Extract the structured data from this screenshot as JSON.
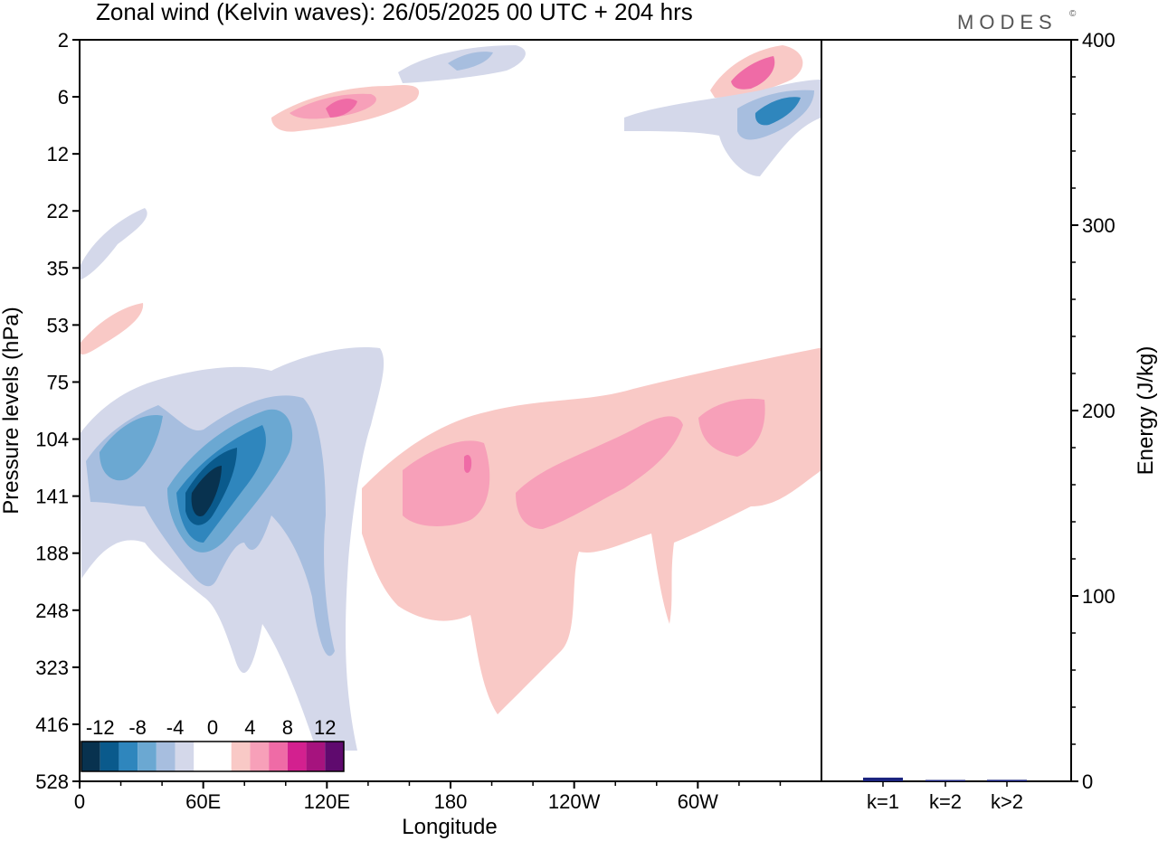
{
  "title": "Zonal wind (Kelvin waves):  26/05/2025  00 UTC  + 204 hrs",
  "logo": "MODES",
  "logo_mark": "©",
  "contour_panel": {
    "xlabel": "Longitude",
    "ylabel": "Pressure levels (hPa)",
    "x_ticks": [
      "0",
      "60E",
      "120E",
      "180",
      "120W",
      "60W"
    ],
    "y_ticks": [
      "2",
      "6",
      "12",
      "22",
      "35",
      "53",
      "75",
      "104",
      "141",
      "188",
      "248",
      "323",
      "416",
      "528"
    ]
  },
  "colorbar": {
    "labels": [
      "-12",
      "-8",
      "-4",
      "0",
      "4",
      "8",
      "12"
    ],
    "colors": [
      "#08324f",
      "#0a5a8c",
      "#2f86bd",
      "#6ba8d2",
      "#a7bedf",
      "#d4d8ea",
      "#ffffff",
      "#ffffff",
      "#f9c9c6",
      "#f7a0b9",
      "#ef6ba6",
      "#d3208f",
      "#a6137e",
      "#5f0a6e"
    ]
  },
  "chart_data": [
    {
      "type": "heatmap",
      "title": "Zonal wind (Kelvin waves):  26/05/2025  00 UTC  + 204 hrs",
      "xlabel": "Longitude",
      "ylabel": "Pressure levels (hPa)",
      "x_categories": [
        "0",
        "60E",
        "120E",
        "180",
        "120W",
        "60W"
      ],
      "y_categories": [
        "2",
        "6",
        "12",
        "22",
        "35",
        "53",
        "75",
        "104",
        "141",
        "188",
        "248",
        "323",
        "416",
        "528"
      ],
      "colorbar_levels": [
        -12,
        -10,
        -8,
        -6,
        -4,
        -2,
        0,
        2,
        4,
        6,
        8,
        10,
        12
      ],
      "features": [
        {
          "sign": "negative",
          "lon_range": [
            40,
            75
          ],
          "p_range_hPa": [
            104,
            248
          ],
          "min_value": -12
        },
        {
          "sign": "negative",
          "lon_range": [
            5,
            30
          ],
          "p_range_hPa": [
            104,
            141
          ],
          "min_value": -6
        },
        {
          "sign": "positive",
          "lon_range": [
            150,
            340
          ],
          "p_range_hPa": [
            75,
            416
          ],
          "max_value": 8
        },
        {
          "sign": "positive",
          "lon_range": [
            100,
            125
          ],
          "p_range_hPa": [
            6,
            8
          ],
          "max_value": 10
        },
        {
          "sign": "positive",
          "lon_range": [
            325,
            345
          ],
          "p_range_hPa": [
            3,
            6
          ],
          "max_value": 8
        },
        {
          "sign": "negative",
          "lon_range": [
            330,
            360
          ],
          "p_range_hPa": [
            6,
            10
          ],
          "min_value": -8
        }
      ]
    },
    {
      "type": "bar",
      "ylabel": "Energy (J/kg)",
      "categories": [
        "k=1",
        "k=2",
        "k>2"
      ],
      "values": [
        2,
        0.5,
        0.8
      ],
      "ylim": [
        0,
        400
      ],
      "y_ticks": [
        "0",
        "100",
        "200",
        "300",
        "400"
      ],
      "bar_color": "#1a237e"
    }
  ]
}
